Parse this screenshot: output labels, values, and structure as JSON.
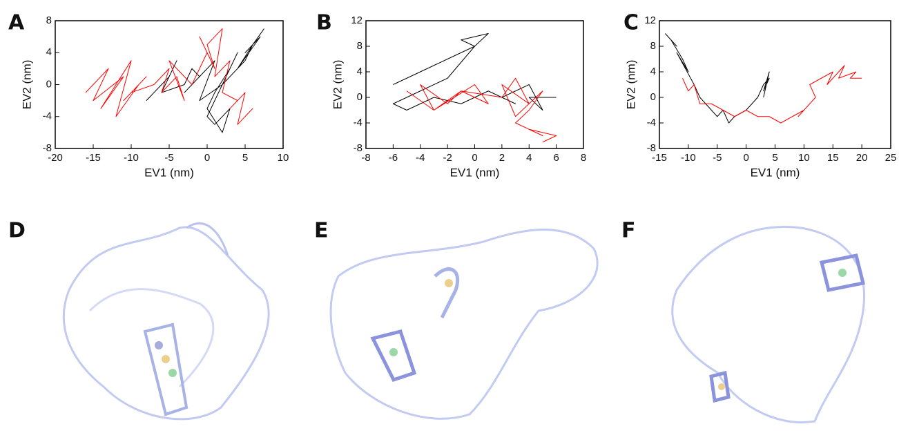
{
  "chart_data": [
    {
      "type": "line",
      "label": "A",
      "xlabel": "EV1 (nm)",
      "ylabel": "EV2 (nm)",
      "xlim": [
        -20,
        10
      ],
      "xticks": [
        -20,
        -15,
        -10,
        -5,
        0,
        5,
        10
      ],
      "ylim": [
        -8,
        8
      ],
      "yticks": [
        -8,
        -4,
        0,
        4,
        8
      ],
      "series": [
        {
          "color": "#000000",
          "x": [
            -8,
            -6,
            -7,
            -5,
            -4,
            -6,
            -3,
            -2,
            -1,
            -3,
            0,
            1,
            -1,
            2,
            0,
            1,
            3,
            2,
            0,
            1,
            3,
            4,
            2,
            5,
            6,
            4,
            7,
            5,
            6,
            7.5
          ],
          "values": [
            -2,
            0,
            -1,
            1,
            3,
            -1,
            0,
            2,
            1,
            -1,
            2,
            3,
            -2,
            0,
            -4,
            -5,
            -3,
            -6,
            -3,
            -1,
            2,
            4,
            0,
            3,
            5,
            2,
            6,
            4,
            5,
            7
          ]
        },
        {
          "color": "#ff0000",
          "x": [
            -16,
            -13,
            -15,
            -11,
            -14,
            -10,
            -12,
            -9,
            -11,
            -8,
            -10,
            -7,
            -5,
            -6,
            -4,
            -3,
            -5,
            -2,
            0,
            -1,
            1,
            0,
            2,
            1,
            3,
            2,
            4,
            3,
            5,
            4,
            6,
            5
          ],
          "values": [
            -1,
            2,
            -2,
            1,
            -3,
            3,
            -4,
            0,
            -2,
            1,
            -1,
            0,
            2,
            -1,
            1,
            -2,
            3,
            0,
            4,
            6,
            2,
            5,
            7,
            1,
            3,
            -1,
            -2,
            -3,
            -1,
            -5,
            -3,
            -4
          ]
        }
      ]
    },
    {
      "type": "line",
      "label": "B",
      "xlabel": "EV1 (nm)",
      "ylabel": "EV2 (nm)",
      "xlim": [
        -8,
        8
      ],
      "xticks": [
        -8,
        -6,
        -4,
        -2,
        0,
        2,
        4,
        6,
        8
      ],
      "ylim": [
        -8,
        12
      ],
      "yticks": [
        -8,
        -4,
        0,
        4,
        8,
        12
      ],
      "series": [
        {
          "color": "#000000",
          "x": [
            -6,
            -4,
            -5,
            -3,
            -2,
            -1,
            0,
            -1,
            1,
            0,
            -2,
            -4,
            -6,
            -5,
            -3,
            -1,
            1,
            3,
            2,
            4,
            5,
            4,
            6
          ],
          "values": [
            2,
            4,
            3,
            5,
            6,
            7,
            8,
            9,
            10,
            8,
            3,
            1,
            -1,
            -2,
            0,
            -1,
            1,
            -1,
            0,
            2,
            -2,
            0,
            0
          ]
        },
        {
          "color": "#ff0000",
          "x": [
            -5,
            -3,
            -4,
            -2,
            -1,
            -3,
            0,
            1,
            -1,
            2,
            3,
            4,
            2,
            3,
            5,
            4,
            3,
            5,
            4,
            6,
            5
          ],
          "values": [
            1,
            -2,
            2,
            -1,
            1,
            -2,
            2,
            -1,
            1,
            0,
            3,
            -1,
            2,
            -3,
            1,
            -2,
            -4,
            -6,
            -5,
            -6,
            -7
          ]
        }
      ]
    },
    {
      "type": "line",
      "label": "C",
      "xlabel": "EV1 (nm)",
      "ylabel": "EV2 (nm)",
      "xlim": [
        -15,
        25
      ],
      "xticks": [
        -15,
        -10,
        -5,
        0,
        5,
        10,
        15,
        20,
        25
      ],
      "ylim": [
        -8,
        12
      ],
      "yticks": [
        -8,
        -4,
        0,
        4,
        8,
        12
      ],
      "series": [
        {
          "color": "#000000",
          "x": [
            -14,
            -12,
            -13,
            -11,
            -10,
            -12,
            -9,
            -8,
            -7,
            -6,
            -5,
            -4,
            -3,
            -2,
            0,
            1,
            2,
            3,
            4,
            3,
            4,
            3
          ],
          "values": [
            10,
            8,
            9,
            6,
            4,
            7,
            2,
            0,
            -1,
            -2,
            -3,
            -2,
            -4,
            -3,
            -2,
            -1,
            0,
            2,
            3,
            1,
            4,
            0
          ]
        },
        {
          "color": "#ff0000",
          "x": [
            -11,
            -10,
            -9,
            -8,
            -6,
            -4,
            -2,
            0,
            2,
            4,
            6,
            8,
            10,
            9,
            12,
            11,
            13,
            15,
            14,
            17,
            16,
            19,
            18,
            20
          ],
          "values": [
            3,
            1,
            2,
            -1,
            -1,
            -2,
            -3,
            -2,
            -3,
            -3,
            -4,
            -3,
            -2,
            -3,
            0,
            2,
            3,
            4,
            2,
            5,
            3,
            4,
            3,
            3
          ]
        }
      ]
    }
  ],
  "structure_panels": [
    {
      "label": "D"
    },
    {
      "label": "E"
    },
    {
      "label": "F"
    }
  ]
}
